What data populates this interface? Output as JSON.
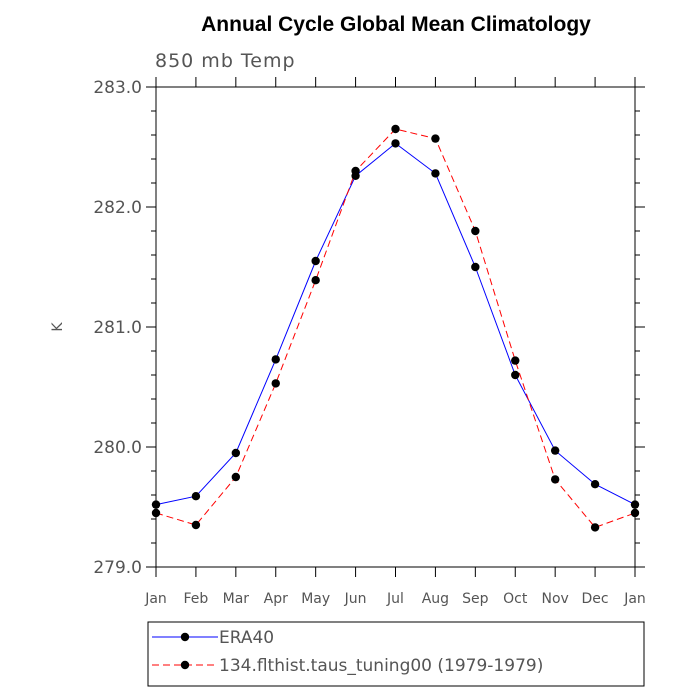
{
  "chart_data": {
    "type": "line",
    "title": "Annual Cycle Global Mean Climatology",
    "subtitle": "850 mb Temp",
    "ylabel": "K",
    "xlabel": "",
    "ylim": [
      279.0,
      283.0
    ],
    "yticks": [
      279.0,
      280.0,
      281.0,
      282.0,
      283.0
    ],
    "ytick_labels": [
      "279.0",
      "280.0",
      "281.0",
      "282.0",
      "283.0"
    ],
    "categories": [
      "Jan",
      "Feb",
      "Mar",
      "Apr",
      "May",
      "Jun",
      "Jul",
      "Aug",
      "Sep",
      "Oct",
      "Nov",
      "Dec",
      "Jan"
    ],
    "series": [
      {
        "name": "ERA40",
        "color": "#0000ff",
        "dash": "solid",
        "values": [
          279.52,
          279.59,
          279.95,
          280.73,
          281.55,
          282.26,
          282.53,
          282.28,
          281.5,
          280.6,
          279.97,
          279.69,
          279.52
        ]
      },
      {
        "name": "134.flthist.taus_tuning00 (1979-1979)",
        "color": "#ff0000",
        "dash": "dashed",
        "values": [
          279.45,
          279.35,
          279.75,
          280.53,
          281.39,
          282.3,
          282.65,
          282.57,
          281.8,
          280.72,
          279.73,
          279.33,
          279.45
        ]
      }
    ],
    "legend_position": "bottom",
    "grid": false
  }
}
